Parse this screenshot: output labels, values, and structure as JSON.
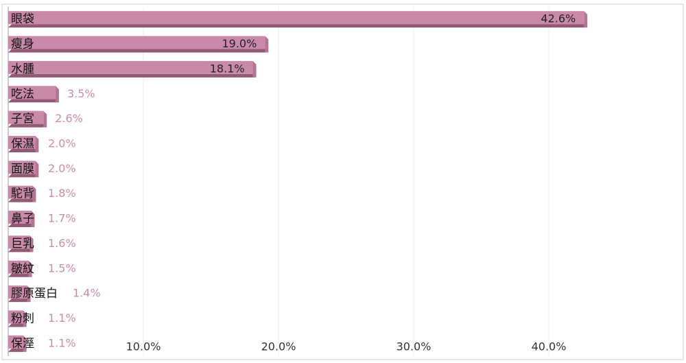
{
  "chart_data": {
    "type": "bar",
    "orientation": "horizontal",
    "categories": [
      "眼袋",
      "瘦身",
      "水腫",
      "吃法",
      "子宮",
      "保濕",
      "面膜",
      "駝背",
      "鼻子",
      "巨乳",
      "皺紋",
      "膠原蛋白",
      "粉刺",
      "保溼"
    ],
    "values": [
      42.6,
      19.0,
      18.1,
      3.5,
      2.6,
      2.0,
      2.0,
      1.8,
      1.7,
      1.6,
      1.5,
      1.4,
      1.1,
      1.1
    ],
    "value_labels": [
      "42.6%",
      "19.0%",
      "18.1%",
      "3.5%",
      "2.6%",
      "2.0%",
      "2.0%",
      "1.8%",
      "1.7%",
      "1.6%",
      "1.5%",
      "1.4%",
      "1.1%",
      "1.1%"
    ],
    "color": "#c98aa9",
    "xlim": [
      0,
      50
    ],
    "xticks": [
      {
        "value": 10,
        "label": "10.0%"
      },
      {
        "value": 20,
        "label": "20.0%"
      },
      {
        "value": 30,
        "label": "30.0%"
      },
      {
        "value": 40,
        "label": "40.0%"
      }
    ],
    "grid": true
  }
}
